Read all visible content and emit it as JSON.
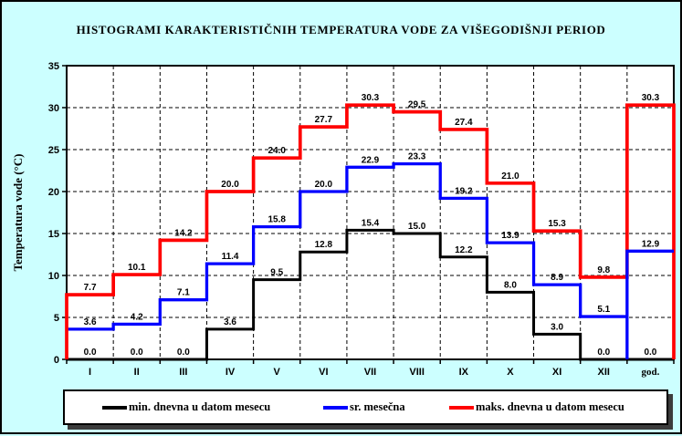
{
  "page": {
    "background_color": "#CCFFFF",
    "plot_border_color": "#000000"
  },
  "chart_data": {
    "type": "line",
    "subtype": "step-histogram",
    "title": "HISTOGRAMI KARAKTERISTIČNIH TEMPERATURA VODE ZA VIŠEGODIŠNJI PERIOD",
    "xlabel": "",
    "ylabel": "Temperatura vode (°C)",
    "categories": [
      "I",
      "II",
      "III",
      "IV",
      "V",
      "VI",
      "VII",
      "VIII",
      "IX",
      "X",
      "XI",
      "XII",
      "god."
    ],
    "ylim": [
      0,
      35
    ],
    "yticks": [
      0,
      5,
      10,
      15,
      20,
      25,
      30,
      35
    ],
    "grid": true,
    "gridline_style": "dashed",
    "legend_position": "bottom",
    "plot_background": "#FFFFFF",
    "value_labels": true,
    "value_label_decimals": 1,
    "series": [
      {
        "name": "min. dnevna u datom mesecu",
        "color": "#000000",
        "values": [
          0.0,
          0.0,
          0.0,
          3.6,
          9.5,
          12.8,
          15.4,
          15.0,
          12.2,
          8.0,
          3.0,
          0.0,
          0.0
        ]
      },
      {
        "name": "sr. mesečna",
        "color": "#0000FF",
        "values": [
          3.6,
          4.2,
          7.1,
          11.4,
          15.8,
          20.0,
          22.9,
          23.3,
          19.2,
          13.9,
          8.9,
          5.1,
          12.9
        ]
      },
      {
        "name": "maks. dnevna u datom mesecu",
        "color": "#FF0000",
        "values": [
          7.7,
          10.1,
          14.2,
          20.0,
          24.0,
          27.7,
          30.3,
          29.5,
          27.4,
          21.0,
          15.3,
          9.8,
          30.3
        ]
      }
    ]
  }
}
